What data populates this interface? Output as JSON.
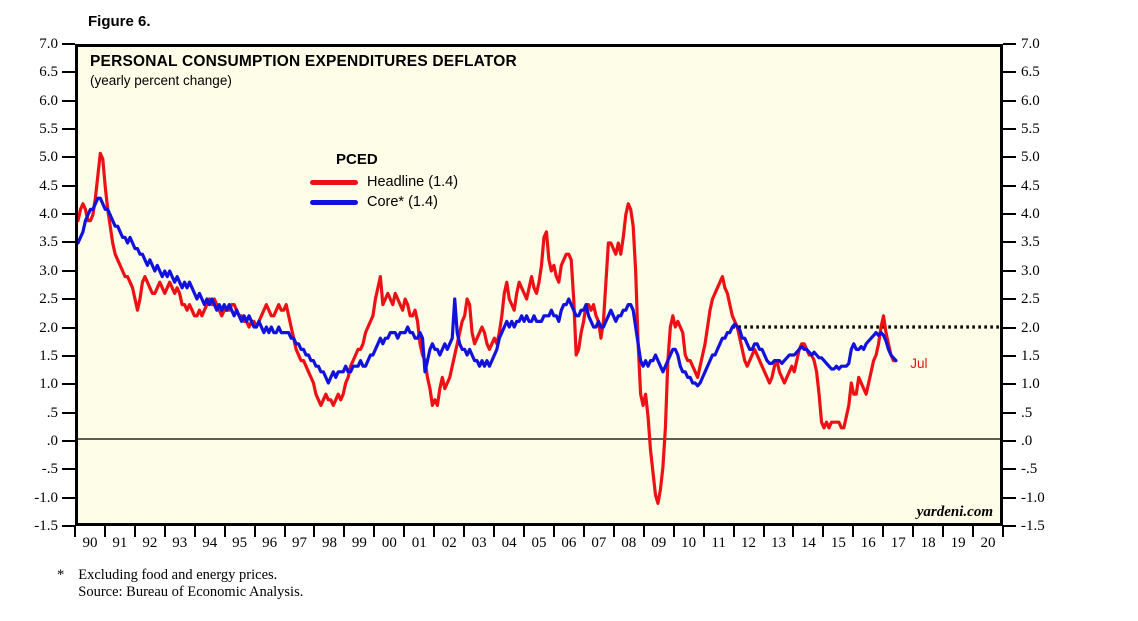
{
  "figure_label": "Figure 6.",
  "title": "PERSONAL CONSUMPTION EXPENDITURES DEFLATOR",
  "subtitle": "(yearly percent change)",
  "legend": {
    "heading": "PCED",
    "items": [
      {
        "label": "Headline (1.4)",
        "color": "#ed1015"
      },
      {
        "label": "Core* (1.4)",
        "color": "#1212dd"
      }
    ]
  },
  "watermark": "yardeni.com",
  "footnotes": {
    "symbol": "*",
    "line1": "Excluding food and energy prices.",
    "line2": "Source: Bureau of Economic Analysis."
  },
  "colors": {
    "plot_background": "#fdfde8",
    "frame": "#000000",
    "headline_red": "#ed1015",
    "core_blue": "#1212dd",
    "target_dotted": "#000000"
  },
  "chart_data": {
    "type": "line",
    "title": "PERSONAL CONSUMPTION EXPENDITURES DEFLATOR",
    "subtitle": "(yearly percent change)",
    "xlabel": "",
    "ylabel": "",
    "x_start_year": 1990,
    "x_end_year": 2021,
    "ylim": [
      -1.5,
      7.0
    ],
    "y_tick_step": 0.5,
    "grid": false,
    "legend_position": "upper-middle-left",
    "y_tick_labels": [
      "7.0",
      "6.5",
      "6.0",
      "5.5",
      "5.0",
      "4.5",
      "4.0",
      "3.5",
      "3.0",
      "2.5",
      "2.0",
      "1.5",
      "1.0",
      ".5",
      ".0",
      "-.5",
      "-1.0",
      "-1.5"
    ],
    "x_tick_labels": [
      "90",
      "91",
      "92",
      "93",
      "94",
      "95",
      "96",
      "97",
      "98",
      "99",
      "00",
      "01",
      "02",
      "03",
      "04",
      "05",
      "06",
      "07",
      "08",
      "09",
      "10",
      "11",
      "12",
      "13",
      "14",
      "15",
      "16",
      "17",
      "18",
      "19",
      "20"
    ],
    "monthly_start": "1990-01",
    "monthly_end": "2017-07",
    "series": [
      {
        "name": "Headline (1.4)",
        "color": "#ed1015",
        "values": [
          3.9,
          4.1,
          4.2,
          4.1,
          3.9,
          3.9,
          4.0,
          4.3,
          4.7,
          5.1,
          5.0,
          4.5,
          4.1,
          3.8,
          3.5,
          3.3,
          3.2,
          3.1,
          3.0,
          2.9,
          2.9,
          2.8,
          2.7,
          2.5,
          2.3,
          2.5,
          2.8,
          2.9,
          2.8,
          2.7,
          2.6,
          2.6,
          2.7,
          2.8,
          2.7,
          2.6,
          2.7,
          2.8,
          2.7,
          2.6,
          2.7,
          2.6,
          2.4,
          2.4,
          2.3,
          2.4,
          2.3,
          2.2,
          2.2,
          2.3,
          2.2,
          2.3,
          2.4,
          2.5,
          2.4,
          2.5,
          2.4,
          2.3,
          2.2,
          2.3,
          2.3,
          2.3,
          2.4,
          2.4,
          2.3,
          2.2,
          2.2,
          2.1,
          2.1,
          2.0,
          2.1,
          2.1,
          2.0,
          2.1,
          2.2,
          2.3,
          2.4,
          2.3,
          2.2,
          2.2,
          2.3,
          2.4,
          2.3,
          2.3,
          2.4,
          2.2,
          2.0,
          1.8,
          1.6,
          1.5,
          1.4,
          1.4,
          1.3,
          1.2,
          1.1,
          1.0,
          0.8,
          0.7,
          0.6,
          0.7,
          0.8,
          0.7,
          0.7,
          0.6,
          0.7,
          0.8,
          0.7,
          0.8,
          1.0,
          1.1,
          1.3,
          1.4,
          1.5,
          1.6,
          1.6,
          1.7,
          1.9,
          2.0,
          2.1,
          2.2,
          2.5,
          2.7,
          2.9,
          2.4,
          2.5,
          2.6,
          2.5,
          2.4,
          2.6,
          2.5,
          2.4,
          2.3,
          2.5,
          2.4,
          2.2,
          2.2,
          2.3,
          2.1,
          1.7,
          1.5,
          1.4,
          1.1,
          0.9,
          0.6,
          0.7,
          0.6,
          0.9,
          1.1,
          0.9,
          1.0,
          1.1,
          1.3,
          1.5,
          1.7,
          1.9,
          2.1,
          2.2,
          2.5,
          2.4,
          1.9,
          1.7,
          1.8,
          1.9,
          2.0,
          1.9,
          1.7,
          1.6,
          1.7,
          1.8,
          1.7,
          1.9,
          2.2,
          2.6,
          2.8,
          2.5,
          2.4,
          2.3,
          2.6,
          2.8,
          2.7,
          2.6,
          2.5,
          2.7,
          2.9,
          2.7,
          2.6,
          2.8,
          3.1,
          3.6,
          3.7,
          3.2,
          3.0,
          3.1,
          2.9,
          2.8,
          3.1,
          3.2,
          3.3,
          3.3,
          3.2,
          2.5,
          1.5,
          1.6,
          1.9,
          2.1,
          2.4,
          2.4,
          2.3,
          2.4,
          2.2,
          2.1,
          1.8,
          2.1,
          2.8,
          3.5,
          3.5,
          3.4,
          3.3,
          3.5,
          3.3,
          3.6,
          4.0,
          4.2,
          4.1,
          3.8,
          3.0,
          1.7,
          0.8,
          0.6,
          0.8,
          0.4,
          -0.2,
          -0.6,
          -1.0,
          -1.15,
          -0.9,
          -0.5,
          0.2,
          1.4,
          2.0,
          2.2,
          2.0,
          2.1,
          2.0,
          1.9,
          1.5,
          1.4,
          1.4,
          1.3,
          1.2,
          1.1,
          1.3,
          1.5,
          1.7,
          2.0,
          2.3,
          2.5,
          2.6,
          2.7,
          2.8,
          2.9,
          2.7,
          2.6,
          2.4,
          2.2,
          2.1,
          2.0,
          1.8,
          1.6,
          1.4,
          1.3,
          1.4,
          1.5,
          1.6,
          1.5,
          1.4,
          1.3,
          1.2,
          1.1,
          1.0,
          1.1,
          1.3,
          1.4,
          1.2,
          1.1,
          1.0,
          1.1,
          1.2,
          1.3,
          1.2,
          1.4,
          1.6,
          1.7,
          1.7,
          1.6,
          1.5,
          1.5,
          1.4,
          1.2,
          0.8,
          0.3,
          0.2,
          0.3,
          0.2,
          0.3,
          0.3,
          0.3,
          0.3,
          0.2,
          0.2,
          0.4,
          0.6,
          1.0,
          0.8,
          0.8,
          1.1,
          1.0,
          0.9,
          0.8,
          1.0,
          1.2,
          1.4,
          1.5,
          1.7,
          2.0,
          2.2,
          1.9,
          1.7,
          1.5,
          1.4,
          1.4
        ]
      },
      {
        "name": "Core* (1.4)",
        "color": "#1212dd",
        "values": [
          3.5,
          3.6,
          3.7,
          3.9,
          4.0,
          4.1,
          4.1,
          4.2,
          4.3,
          4.3,
          4.2,
          4.1,
          4.1,
          4.0,
          3.9,
          3.8,
          3.8,
          3.7,
          3.6,
          3.6,
          3.5,
          3.6,
          3.5,
          3.4,
          3.4,
          3.3,
          3.3,
          3.2,
          3.1,
          3.2,
          3.1,
          3.0,
          3.1,
          3.0,
          2.9,
          3.0,
          2.9,
          3.0,
          2.9,
          2.8,
          2.9,
          2.8,
          2.7,
          2.8,
          2.7,
          2.8,
          2.7,
          2.6,
          2.5,
          2.6,
          2.5,
          2.4,
          2.5,
          2.4,
          2.5,
          2.4,
          2.3,
          2.4,
          2.3,
          2.4,
          2.3,
          2.4,
          2.3,
          2.2,
          2.3,
          2.2,
          2.1,
          2.2,
          2.1,
          2.2,
          2.1,
          2.0,
          2.0,
          2.1,
          2.0,
          1.9,
          2.0,
          1.9,
          2.0,
          1.9,
          1.9,
          2.0,
          1.9,
          1.9,
          1.9,
          1.9,
          1.8,
          1.8,
          1.7,
          1.7,
          1.6,
          1.6,
          1.5,
          1.5,
          1.4,
          1.4,
          1.3,
          1.3,
          1.2,
          1.2,
          1.1,
          1.0,
          1.1,
          1.2,
          1.1,
          1.2,
          1.2,
          1.2,
          1.3,
          1.2,
          1.2,
          1.3,
          1.3,
          1.3,
          1.4,
          1.3,
          1.3,
          1.4,
          1.5,
          1.5,
          1.6,
          1.7,
          1.8,
          1.7,
          1.8,
          1.8,
          1.9,
          1.9,
          1.9,
          1.8,
          1.9,
          1.9,
          1.9,
          2.0,
          1.9,
          1.9,
          1.8,
          1.8,
          1.9,
          1.8,
          1.2,
          1.4,
          1.6,
          1.7,
          1.6,
          1.6,
          1.5,
          1.6,
          1.7,
          1.6,
          1.7,
          1.8,
          2.5,
          1.9,
          1.7,
          1.6,
          1.6,
          1.5,
          1.6,
          1.5,
          1.4,
          1.4,
          1.3,
          1.4,
          1.3,
          1.4,
          1.3,
          1.4,
          1.5,
          1.6,
          1.8,
          1.9,
          2.0,
          2.1,
          2.0,
          2.1,
          2.0,
          2.1,
          2.1,
          2.2,
          2.1,
          2.2,
          2.1,
          2.1,
          2.2,
          2.1,
          2.1,
          2.1,
          2.2,
          2.2,
          2.2,
          2.3,
          2.2,
          2.2,
          2.1,
          2.3,
          2.4,
          2.4,
          2.5,
          2.4,
          2.3,
          2.2,
          2.2,
          2.3,
          2.3,
          2.4,
          2.2,
          2.1,
          2.0,
          2.0,
          2.1,
          2.0,
          2.0,
          2.1,
          2.2,
          2.3,
          2.2,
          2.1,
          2.2,
          2.2,
          2.3,
          2.3,
          2.4,
          2.4,
          2.3,
          2.0,
          1.7,
          1.4,
          1.3,
          1.4,
          1.3,
          1.4,
          1.4,
          1.5,
          1.4,
          1.3,
          1.2,
          1.3,
          1.4,
          1.5,
          1.6,
          1.6,
          1.5,
          1.3,
          1.2,
          1.2,
          1.1,
          1.1,
          1.0,
          1.0,
          0.95,
          1.0,
          1.1,
          1.2,
          1.3,
          1.4,
          1.5,
          1.5,
          1.6,
          1.7,
          1.8,
          1.8,
          1.9,
          1.9,
          2.0,
          2.05,
          2.0,
          1.95,
          1.8,
          1.8,
          1.7,
          1.6,
          1.6,
          1.7,
          1.7,
          1.6,
          1.6,
          1.5,
          1.4,
          1.35,
          1.35,
          1.4,
          1.4,
          1.4,
          1.35,
          1.4,
          1.45,
          1.5,
          1.5,
          1.5,
          1.55,
          1.6,
          1.65,
          1.6,
          1.6,
          1.55,
          1.5,
          1.55,
          1.5,
          1.45,
          1.45,
          1.4,
          1.35,
          1.3,
          1.25,
          1.25,
          1.3,
          1.25,
          1.3,
          1.3,
          1.3,
          1.35,
          1.6,
          1.7,
          1.6,
          1.6,
          1.65,
          1.6,
          1.7,
          1.75,
          1.8,
          1.85,
          1.9,
          1.85,
          1.9,
          1.85,
          1.75,
          1.6,
          1.5,
          1.45,
          1.4
        ]
      }
    ],
    "reference_lines": [
      {
        "value": 0.0,
        "style": "solid",
        "color": "#000000",
        "from_year": 1990,
        "to_year": 2021
      },
      {
        "value": 2.0,
        "style": "dotted",
        "color": "#000000",
        "from_year": 2012,
        "to_year": 2021
      }
    ],
    "end_label": {
      "text": "Jul",
      "series": "Headline (1.4)",
      "x_year": 2017.58,
      "y_value": 1.4,
      "color": "#ed1015"
    }
  }
}
